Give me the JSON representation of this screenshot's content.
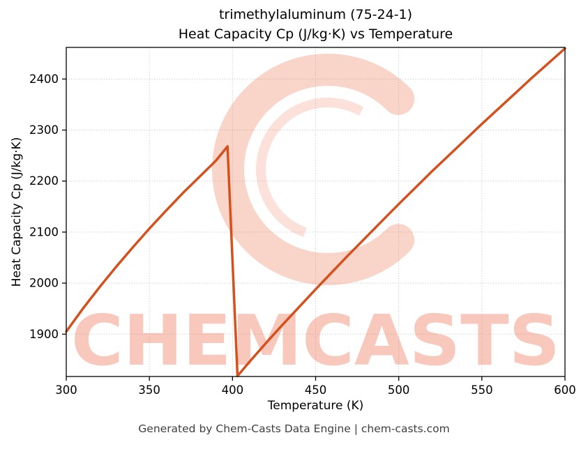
{
  "figure": {
    "title_line1": "trimethylaluminum (75-24-1)",
    "title_line2": "Heat Capacity Cp (J/kg·K) vs Temperature",
    "footer": "Generated by Chem-Casts Data Engine | chem-casts.com"
  },
  "watermark": {
    "text": "CHEMCASTS",
    "color": "#e8582f"
  },
  "chart_data": {
    "type": "line",
    "title": "trimethylaluminum (75-24-1) — Heat Capacity Cp (J/kg·K) vs Temperature",
    "xlabel": "Temperature (K)",
    "ylabel": "Heat Capacity Cp (J/kg·K)",
    "xlim": [
      300,
      600
    ],
    "ylim": [
      1817,
      2462
    ],
    "x_ticks": [
      300,
      350,
      400,
      450,
      500,
      550,
      600
    ],
    "y_ticks": [
      1900,
      2000,
      2100,
      2200,
      2300,
      2400
    ],
    "grid": true,
    "legend": "none",
    "line_color": "#d4511e",
    "line_width": 3.5,
    "series": [
      {
        "name": "Cp",
        "x": [
          300,
          310,
          320,
          330,
          340,
          350,
          360,
          370,
          380,
          390,
          397,
          403,
          410,
          420,
          430,
          440,
          450,
          460,
          470,
          480,
          490,
          500,
          510,
          520,
          530,
          540,
          550,
          560,
          570,
          580,
          590,
          600
        ],
        "y": [
          1905,
          1950,
          1992,
          2032,
          2070,
          2107,
          2142,
          2176,
          2208,
          2240,
          2268,
          1818,
          1845,
          1882,
          1918,
          1953,
          1988,
          2022,
          2056,
          2089,
          2122,
          2155,
          2187,
          2219,
          2250,
          2281,
          2312,
          2342,
          2372,
          2402,
          2431,
          2460
        ]
      }
    ],
    "annotations": {
      "peak": {
        "x": 397,
        "y": 2268
      },
      "discontinuity_min": {
        "x": 403,
        "y": 1818
      }
    }
  }
}
